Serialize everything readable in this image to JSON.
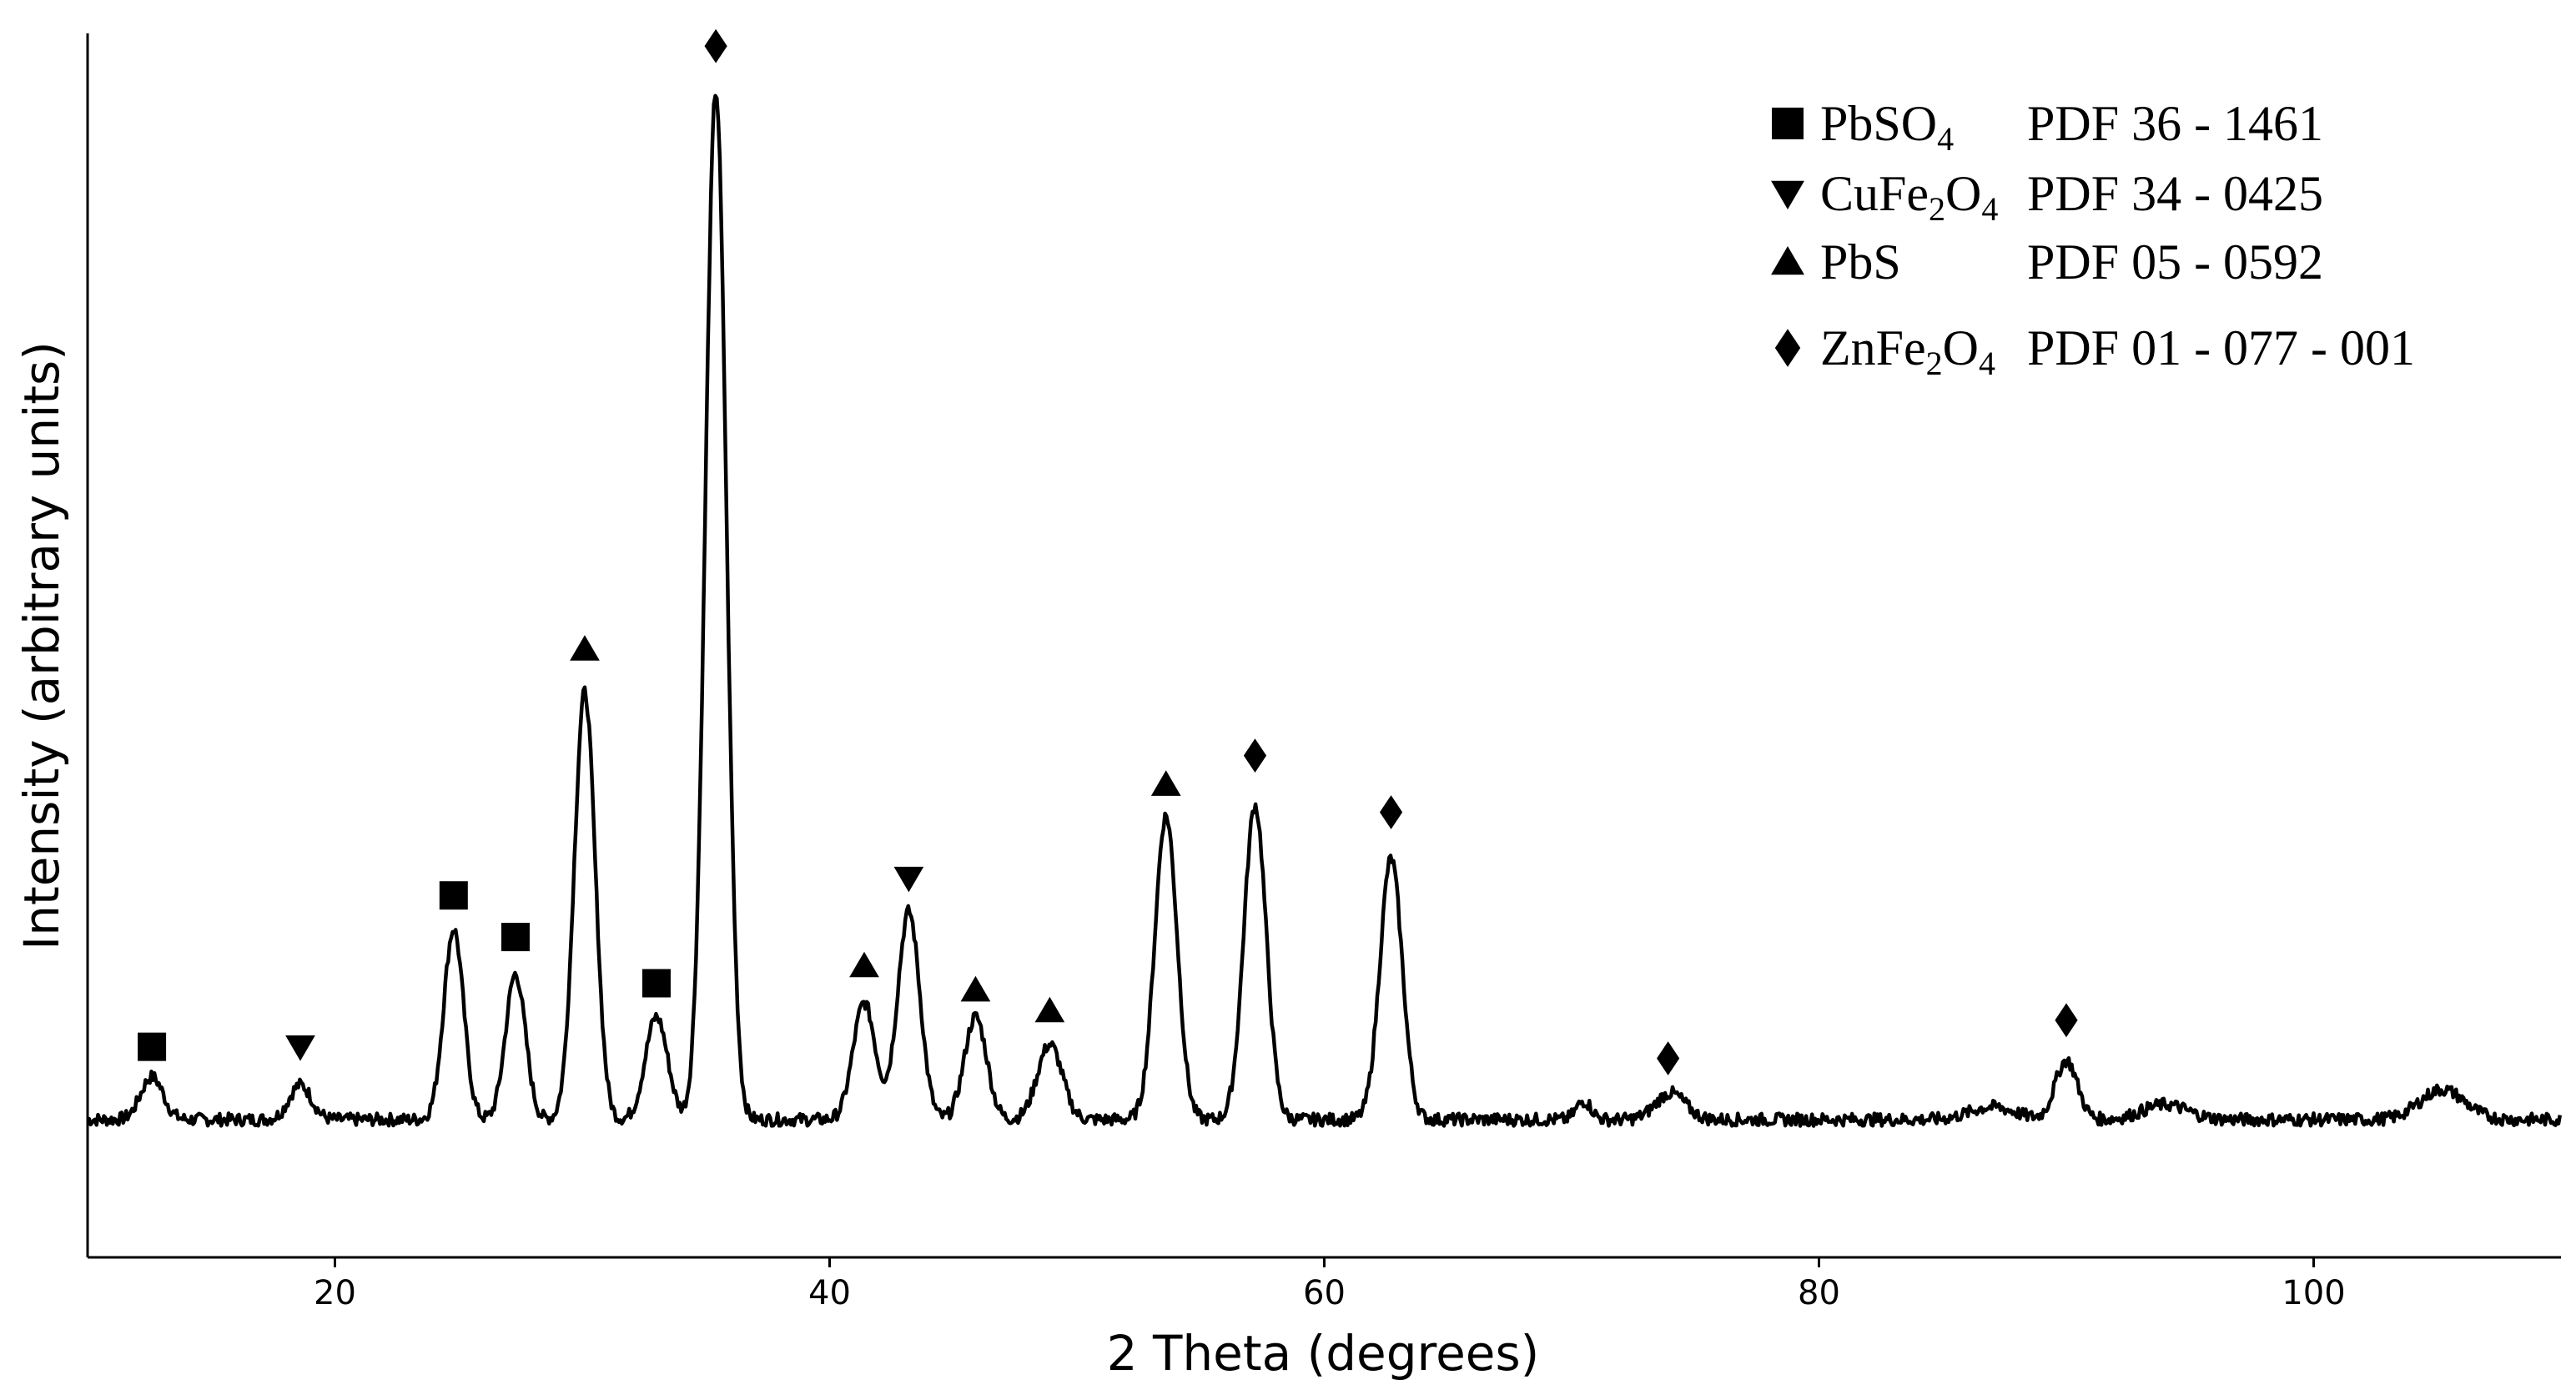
{
  "chart_data": {
    "type": "line",
    "title": "",
    "xlabel": "2 Theta (degrees)",
    "ylabel": "Intensity (arbitrary units)",
    "xlim": [
      10,
      110
    ],
    "ylim": [
      0,
      100
    ],
    "x_ticks": [
      "20",
      "40",
      "60",
      "80",
      "100"
    ],
    "y_ticks_shown": false,
    "grid": false,
    "legend_position": "top-right",
    "baseline": 6,
    "series": [
      {
        "peaks": [
          {
            "x": 12.6,
            "y": 9.7,
            "w": 0.45
          },
          {
            "x": 18.6,
            "y": 9.0,
            "w": 0.45
          },
          {
            "x": 24.8,
            "y": 22.5,
            "w": 0.4
          },
          {
            "x": 27.3,
            "y": 18.6,
            "w": 0.4
          },
          {
            "x": 30.1,
            "y": 43.0,
            "w": 0.42
          },
          {
            "x": 33.0,
            "y": 14.9,
            "w": 0.45
          },
          {
            "x": 35.4,
            "y": 95.0,
            "w": 0.42
          },
          {
            "x": 41.4,
            "y": 16.1,
            "w": 0.45
          },
          {
            "x": 43.2,
            "y": 24.0,
            "w": 0.45
          },
          {
            "x": 45.9,
            "y": 14.9,
            "w": 0.45
          },
          {
            "x": 48.9,
            "y": 12.5,
            "w": 0.5
          },
          {
            "x": 53.6,
            "y": 32.3,
            "w": 0.45
          },
          {
            "x": 57.2,
            "y": 33.2,
            "w": 0.45
          },
          {
            "x": 62.7,
            "y": 28.6,
            "w": 0.45
          },
          {
            "x": 70.5,
            "y": 7.6,
            "w": 0.3
          },
          {
            "x": 74.0,
            "y": 8.3,
            "w": 0.6
          },
          {
            "x": 87.0,
            "y": 7.1,
            "w": 0.9
          },
          {
            "x": 90.0,
            "y": 11.1,
            "w": 0.45
          },
          {
            "x": 94.0,
            "y": 7.3,
            "w": 0.9
          },
          {
            "x": 105.2,
            "y": 8.6,
            "w": 0.9
          }
        ]
      }
    ],
    "markers": [
      {
        "phase": "PbSO4",
        "x": 12.6,
        "y": 12.3
      },
      {
        "phase": "CuFe2O4",
        "x": 18.6,
        "y": 12.3
      },
      {
        "phase": "PbSO4",
        "x": 24.8,
        "y": 25.4
      },
      {
        "phase": "PbSO4",
        "x": 27.3,
        "y": 21.8
      },
      {
        "phase": "PbS",
        "x": 30.1,
        "y": 46.7
      },
      {
        "phase": "PbSO4",
        "x": 33.0,
        "y": 17.8
      },
      {
        "phase": "ZnFe2O4",
        "x": 35.4,
        "y": 98.9
      },
      {
        "phase": "PbS",
        "x": 41.4,
        "y": 19.3
      },
      {
        "phase": "CuFe2O4",
        "x": 43.2,
        "y": 26.9
      },
      {
        "phase": "PbS",
        "x": 45.9,
        "y": 17.2
      },
      {
        "phase": "PbS",
        "x": 48.9,
        "y": 15.4
      },
      {
        "phase": "PbS",
        "x": 53.6,
        "y": 35.0
      },
      {
        "phase": "ZnFe2O4",
        "x": 57.2,
        "y": 37.5
      },
      {
        "phase": "ZnFe2O4",
        "x": 62.7,
        "y": 32.6
      },
      {
        "phase": "ZnFe2O4",
        "x": 73.9,
        "y": 11.3
      },
      {
        "phase": "ZnFe2O4",
        "x": 90.0,
        "y": 14.6
      }
    ],
    "legend": [
      {
        "phase": "PbSO4",
        "symbol": "square",
        "formula_parts": [
          "PbSO",
          "4",
          ""
        ],
        "pdf": "PDF 36 - 1461"
      },
      {
        "phase": "CuFe2O4",
        "symbol": "triangle-down",
        "formula_parts": [
          "CuFe",
          "2",
          "O",
          "4"
        ],
        "pdf": "PDF 34 - 0425"
      },
      {
        "phase": "PbS",
        "symbol": "triangle-up",
        "formula_parts": [
          "PbS",
          "",
          "",
          ""
        ],
        "pdf": "PDF 05 - 0592"
      },
      {
        "phase": "ZnFe2O4",
        "symbol": "diamond",
        "formula_parts": [
          "ZnFe",
          "2",
          "O",
          "4"
        ],
        "pdf": "PDF 01 - 077 - 001"
      }
    ],
    "colors": {
      "line": "#000000",
      "marker": "#000000",
      "axis": "#000000"
    }
  }
}
